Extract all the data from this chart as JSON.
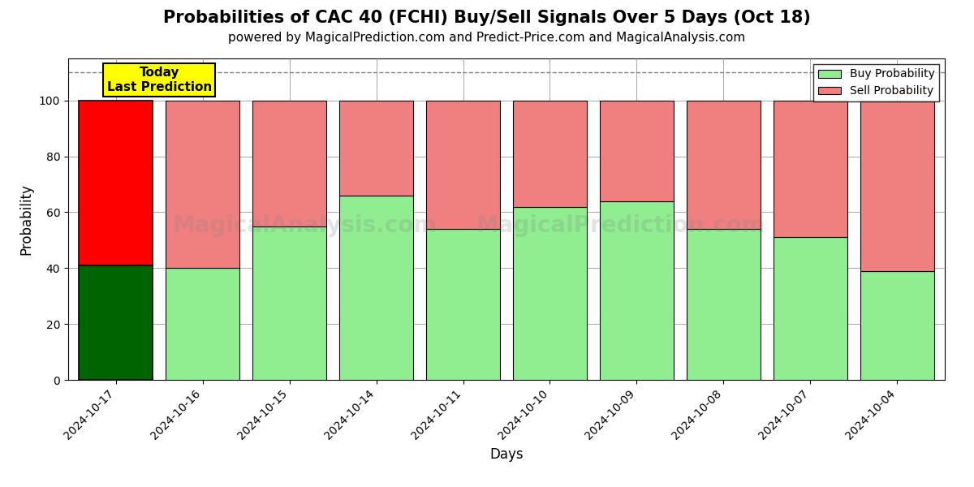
{
  "title": "Probabilities of CAC 40 (FCHI) Buy/Sell Signals Over 5 Days (Oct 18)",
  "subtitle": "powered by MagicalPrediction.com and Predict-Price.com and MagicalAnalysis.com",
  "xlabel": "Days",
  "ylabel": "Probability",
  "dates": [
    "2024-10-17",
    "2024-10-16",
    "2024-10-15",
    "2024-10-14",
    "2024-10-11",
    "2024-10-10",
    "2024-10-09",
    "2024-10-08",
    "2024-10-07",
    "2024-10-04"
  ],
  "buy_values": [
    41,
    40,
    55,
    66,
    54,
    62,
    64,
    54,
    51,
    39
  ],
  "sell_values": [
    59,
    60,
    45,
    34,
    46,
    38,
    36,
    46,
    49,
    61
  ],
  "today_buy_color": "#006400",
  "today_sell_color": "#ff0000",
  "regular_buy_color": "#90EE90",
  "regular_sell_color": "#F08080",
  "today_annotation": "Today\nLast Prediction",
  "ylim": [
    0,
    115
  ],
  "yticks": [
    0,
    20,
    40,
    60,
    80,
    100
  ],
  "dashed_line_y": 110,
  "watermark_lines": [
    "MagicalAnalysis.com",
    "MagicalPrediction.com"
  ],
  "background_color": "#ffffff",
  "legend_buy_label": "Buy Probability",
  "legend_sell_label": "Sell Probability",
  "title_fontsize": 15,
  "subtitle_fontsize": 11
}
